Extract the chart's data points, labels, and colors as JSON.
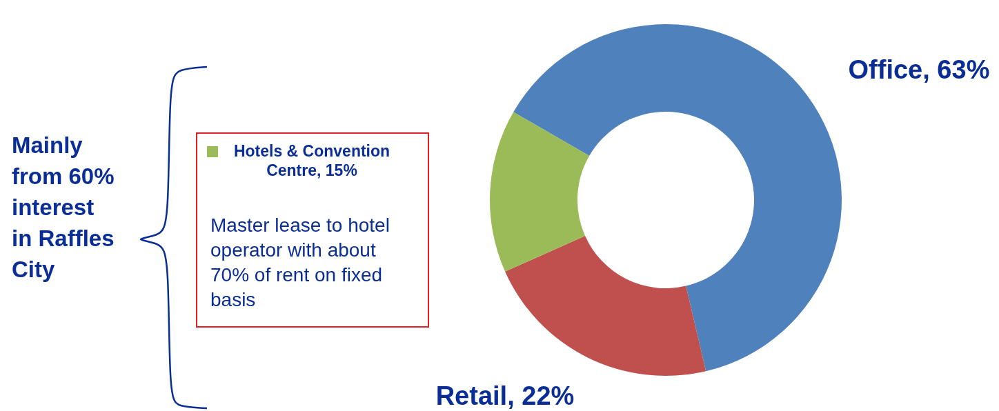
{
  "chart_data": {
    "type": "donut",
    "categories": [
      "Office",
      "Retail",
      "Hotels & Convention Centre"
    ],
    "values": [
      63,
      22,
      15
    ],
    "colors": [
      "#4f81bd",
      "#c0504d",
      "#9bbb59"
    ],
    "value_labels": [
      "63%",
      "22%",
      "15%"
    ],
    "annotations": [
      "Master lease to hotel operator with about 70% of rent on fixed basis",
      "Mainly from 60% interest in Raffles City"
    ]
  }
}
